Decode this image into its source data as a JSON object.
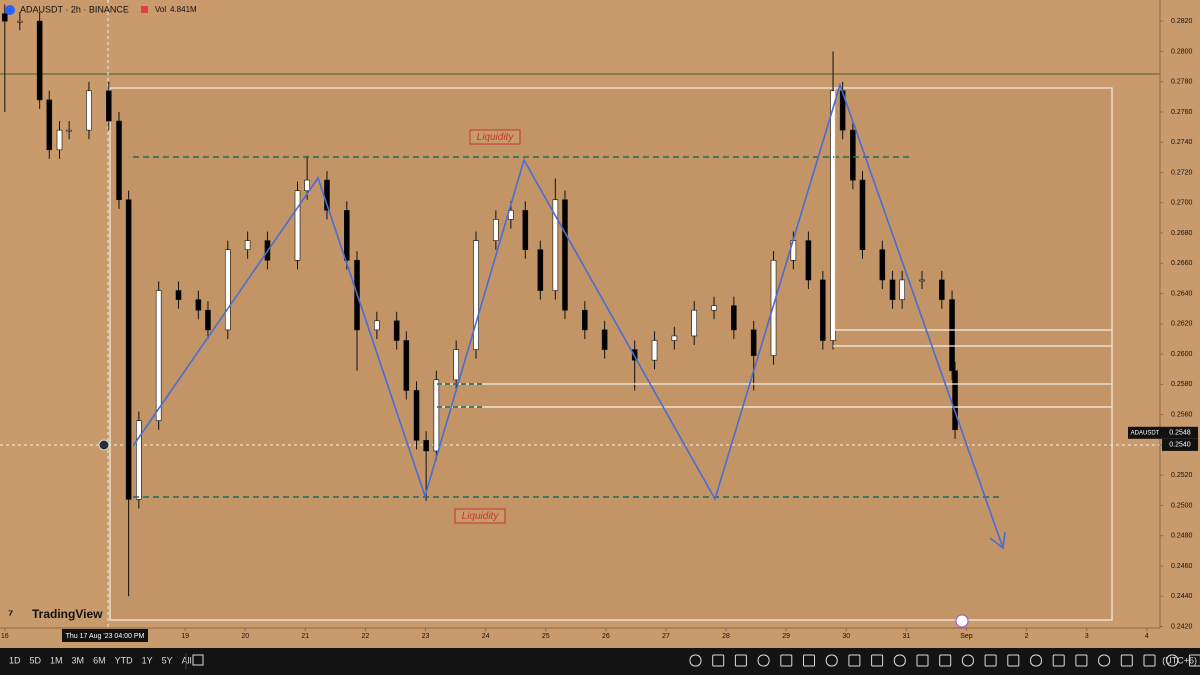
{
  "header": {
    "symbol": "ADAUSDT · 2h · BINANCE",
    "vol_label": "Vol",
    "vol_value": "4.841M"
  },
  "brand": "TradingView",
  "toolbar": {
    "periods": [
      "1D",
      "5D",
      "1M",
      "3M",
      "6M",
      "YTD",
      "1Y",
      "5Y",
      "All"
    ],
    "timezone": "(UTC+6)"
  },
  "chart_data": {
    "type": "candlestick",
    "x": [
      0,
      0.25,
      0.58,
      0.74,
      0.91,
      1.07,
      1.4,
      1.73,
      1.9,
      2.06,
      2.23,
      2.56,
      2.89,
      3.22,
      3.38,
      3.71,
      4.04,
      4.37,
      4.87,
      5.03,
      5.36,
      5.69,
      5.86,
      6.19,
      6.52,
      6.68,
      6.85,
      7.01,
      7.18,
      7.51,
      7.84,
      8.17,
      8.42,
      8.66,
      8.91,
      9.16,
      9.32,
      9.65,
      9.98,
      10.48,
      10.81,
      11.14,
      11.47,
      11.8,
      12.13,
      12.46,
      12.79,
      13.12,
      13.37,
      13.61,
      13.78,
      13.94,
      14.11,
      14.27,
      14.6,
      14.77,
      14.93,
      15.26,
      15.59,
      15.76,
      15.81
    ],
    "open": [
      0.2825,
      0.282,
      0.282,
      0.2768,
      0.2735,
      0.2748,
      0.2748,
      0.2774,
      0.2754,
      0.2702,
      0.2504,
      0.2556,
      0.2642,
      0.2636,
      0.2629,
      0.2616,
      0.2669,
      0.2675,
      0.2662,
      0.2708,
      0.2715,
      0.2695,
      0.2662,
      0.2616,
      0.2622,
      0.2609,
      0.2576,
      0.2543,
      0.2536,
      0.2583,
      0.2603,
      0.2675,
      0.2689,
      0.2695,
      0.2669,
      0.2642,
      0.2702,
      0.2629,
      0.2616,
      0.2603,
      0.2596,
      0.2609,
      0.2612,
      0.2629,
      0.2632,
      0.2616,
      0.2599,
      0.2662,
      0.2675,
      0.2649,
      0.2609,
      0.2774,
      0.2748,
      0.2715,
      0.2669,
      0.2649,
      0.2636,
      0.2649,
      0.2649,
      0.2636,
      0.2589
    ],
    "high": [
      0.2831,
      0.2826,
      0.2826,
      0.2774,
      0.2754,
      0.2754,
      0.278,
      0.278,
      0.276,
      0.2708,
      0.2562,
      0.2648,
      0.2648,
      0.2642,
      0.2635,
      0.2675,
      0.2681,
      0.2681,
      0.2714,
      0.2731,
      0.2721,
      0.2701,
      0.2668,
      0.2628,
      0.2628,
      0.2615,
      0.2582,
      0.2549,
      0.2589,
      0.2609,
      0.2681,
      0.2695,
      0.2701,
      0.2701,
      0.2675,
      0.2716,
      0.2708,
      0.2635,
      0.2622,
      0.2609,
      0.2615,
      0.2618,
      0.2635,
      0.2638,
      0.2638,
      0.2622,
      0.2668,
      0.2681,
      0.2681,
      0.2655,
      0.28,
      0.278,
      0.2754,
      0.2721,
      0.2675,
      0.2655,
      0.2655,
      0.2655,
      0.2655,
      0.2642,
      0.2595
    ],
    "low": [
      0.276,
      0.2814,
      0.2762,
      0.2729,
      0.2729,
      0.2742,
      0.2742,
      0.2748,
      0.2696,
      0.244,
      0.2498,
      0.255,
      0.263,
      0.2623,
      0.261,
      0.261,
      0.2663,
      0.2656,
      0.2656,
      0.2702,
      0.2689,
      0.2656,
      0.2589,
      0.261,
      0.2603,
      0.257,
      0.2537,
      0.2503,
      0.253,
      0.2577,
      0.2597,
      0.2669,
      0.2683,
      0.2663,
      0.2636,
      0.2636,
      0.2623,
      0.261,
      0.2597,
      0.2576,
      0.259,
      0.2603,
      0.2606,
      0.2623,
      0.261,
      0.2576,
      0.2593,
      0.2656,
      0.2643,
      0.2603,
      0.2603,
      0.2742,
      0.2709,
      0.2663,
      0.2643,
      0.263,
      0.263,
      0.2643,
      0.263,
      0.2583,
      0.2544
    ],
    "close": [
      0.282,
      0.282,
      0.2768,
      0.2735,
      0.2748,
      0.2748,
      0.2774,
      0.2754,
      0.2702,
      0.2504,
      0.2556,
      0.2642,
      0.2636,
      0.2629,
      0.2616,
      0.2669,
      0.2675,
      0.2662,
      0.2708,
      0.2715,
      0.2695,
      0.2662,
      0.2616,
      0.2622,
      0.2609,
      0.2576,
      0.2543,
      0.2536,
      0.2583,
      0.2603,
      0.2675,
      0.2689,
      0.2695,
      0.2669,
      0.2642,
      0.2702,
      0.2629,
      0.2616,
      0.2603,
      0.2596,
      0.2609,
      0.2612,
      0.2629,
      0.2632,
      0.2616,
      0.2599,
      0.2662,
      0.2675,
      0.2649,
      0.2609,
      0.2774,
      0.2748,
      0.2715,
      0.2669,
      0.2649,
      0.2636,
      0.2649,
      0.2649,
      0.2636,
      0.2589,
      0.255
    ],
    "up_color": "#ffffff",
    "down_color": "#000000",
    "xlim": [
      -0.08,
      19.22
    ],
    "ylim": [
      0.2419,
      0.2834
    ],
    "xticks": [
      {
        "value": 0,
        "label": "16"
      },
      {
        "value": 3,
        "label": "19"
      },
      {
        "value": 4,
        "label": "20"
      },
      {
        "value": 5,
        "label": "21"
      },
      {
        "value": 6,
        "label": "22"
      },
      {
        "value": 7,
        "label": "23"
      },
      {
        "value": 8,
        "label": "24"
      },
      {
        "value": 9,
        "label": "25"
      },
      {
        "value": 10,
        "label": "26"
      },
      {
        "value": 11,
        "label": "27"
      },
      {
        "value": 12,
        "label": "28"
      },
      {
        "value": 13,
        "label": "29"
      },
      {
        "value": 14,
        "label": "30"
      },
      {
        "value": 15,
        "label": "31"
      },
      {
        "value": 16,
        "label": "Sep"
      },
      {
        "value": 17,
        "label": "2"
      },
      {
        "value": 18,
        "label": "3"
      },
      {
        "value": 19,
        "label": "4"
      }
    ],
    "yticks": [
      {
        "value": 0.282,
        "label": "0.2820"
      },
      {
        "value": 0.28,
        "label": "0.2800"
      },
      {
        "value": 0.278,
        "label": "0.2780"
      },
      {
        "value": 0.276,
        "label": "0.2760"
      },
      {
        "value": 0.274,
        "label": "0.2740"
      },
      {
        "value": 0.272,
        "label": "0.2720"
      },
      {
        "value": 0.27,
        "label": "0.2700"
      },
      {
        "value": 0.268,
        "label": "0.2680"
      },
      {
        "value": 0.266,
        "label": "0.2660"
      },
      {
        "value": 0.264,
        "label": "0.2640"
      },
      {
        "value": 0.262,
        "label": "0.2620"
      },
      {
        "value": 0.26,
        "label": "0.2600"
      },
      {
        "value": 0.258,
        "label": "0.2580"
      },
      {
        "value": 0.256,
        "label": "0.2560"
      },
      {
        "value": 0.254,
        "label": "0.2540"
      },
      {
        "value": 0.252,
        "label": "0.2520"
      },
      {
        "value": 0.25,
        "label": "0.2500"
      },
      {
        "value": 0.248,
        "label": "0.2480"
      },
      {
        "value": 0.246,
        "label": "0.2460"
      },
      {
        "value": 0.244,
        "label": "0.2440"
      },
      {
        "value": 0.242,
        "label": "0.2420"
      }
    ],
    "annotations": [
      "Liquidity",
      "Liquidity"
    ],
    "crosshair_date": "Thu 17 Aug '23  04:00 PM",
    "last_price_symbol": "ADAUSDT",
    "last_price": {
      "value": 0.2548,
      "label": "0.2548"
    },
    "crosshair_price": {
      "value": 0.254,
      "label": "0.2540"
    }
  }
}
